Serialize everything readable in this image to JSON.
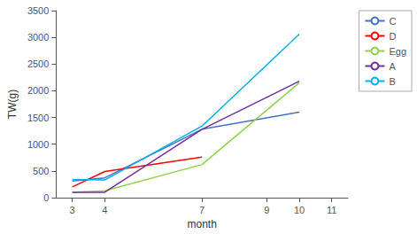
{
  "chart_data": {
    "type": "line",
    "xlabel": "month",
    "ylabel": "TW(g)",
    "x": [
      3,
      4,
      7,
      10
    ],
    "series": [
      {
        "name": "C",
        "color": "#4472C4",
        "values": [
          310,
          370,
          1280,
          1600
        ]
      },
      {
        "name": "D",
        "color": "#FF0000",
        "values": [
          200,
          490,
          760,
          null
        ]
      },
      {
        "name": "Egg",
        "color": "#92D050",
        "values": [
          100,
          130,
          620,
          2150
        ]
      },
      {
        "name": "A",
        "color": "#7030A0",
        "values": [
          100,
          100,
          1280,
          2180
        ]
      },
      {
        "name": "B",
        "color": "#00B0F0",
        "values": [
          340,
          330,
          1340,
          3060
        ]
      }
    ],
    "xlim": [
      2.5,
      11.5
    ],
    "xticks": [
      3,
      4,
      7,
      9,
      10,
      11
    ],
    "ylim": [
      0,
      3500
    ],
    "yticks": [
      0,
      500,
      1000,
      1500,
      2000,
      2500,
      3000,
      3500
    ],
    "grid": false,
    "legend": "upper right"
  }
}
